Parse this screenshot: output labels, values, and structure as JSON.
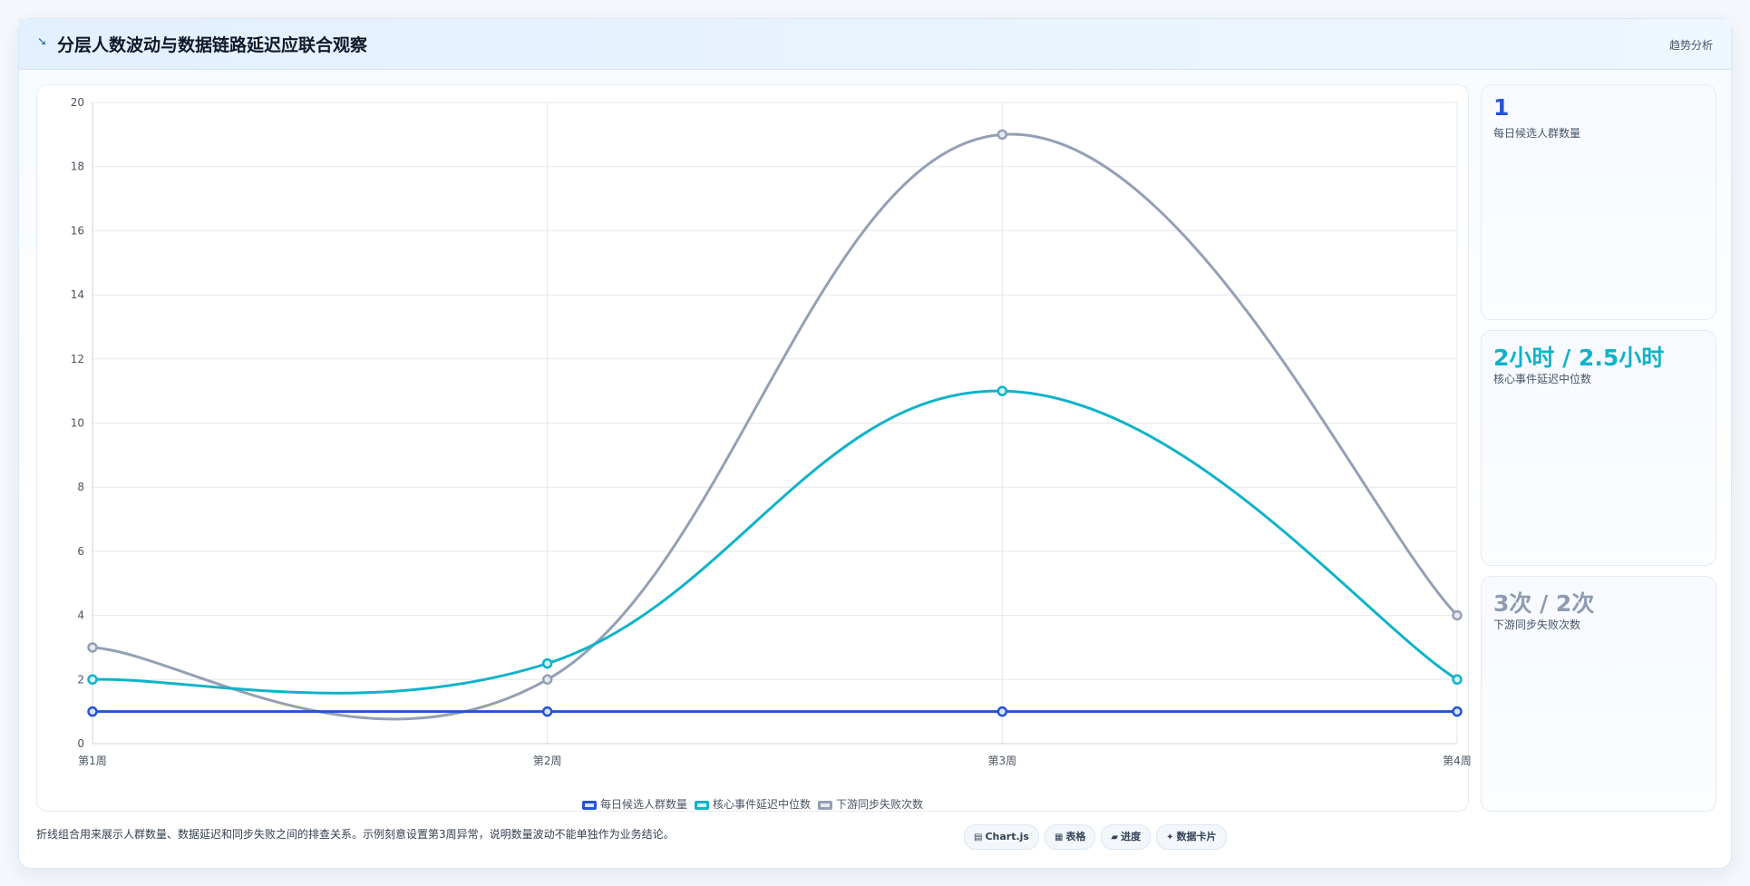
{
  "header": {
    "icon": "line-chart-icon",
    "title": "分层人数波动与数据链路延迟应联合观察",
    "tag": "趋势分析"
  },
  "stats": [
    {
      "value": "1",
      "label": "每日候选人群数量",
      "color": "#2453d6"
    },
    {
      "value": "2小时 / 2.5小时",
      "label": "核心事件延迟中位数",
      "color": "#0fb3c9"
    },
    {
      "value": "3次 / 2次",
      "label": "下游同步失败次数",
      "color": "#8f9bb0"
    }
  ],
  "footer": {
    "note": "折线组合用来展示人群数量、数据延迟和同步失败之间的排查关系。示例刻意设置第3周异常，说明数量波动不能单独作为业务结论。",
    "chips": [
      {
        "icon": "▤",
        "label": "Chart.js"
      },
      {
        "icon": "▦",
        "label": "表格"
      },
      {
        "icon": "▰",
        "label": "进度"
      },
      {
        "icon": "✦",
        "label": "数据卡片"
      }
    ]
  },
  "chart_data": {
    "type": "line",
    "categories": [
      "第1周",
      "第2周",
      "第3周",
      "第4周"
    ],
    "ylim": [
      0,
      20
    ],
    "y_ticks": [
      0,
      2,
      4,
      6,
      8,
      10,
      12,
      14,
      16,
      18,
      20
    ],
    "grid": true,
    "legend_position": "bottom",
    "series": [
      {
        "name": "每日候选人群数量",
        "values": [
          1,
          1,
          1,
          1
        ],
        "color": "#2453d6",
        "fill": "#dbe5fb"
      },
      {
        "name": "核心事件延迟中位数",
        "values": [
          2,
          2.5,
          11,
          2
        ],
        "color": "#0fb3c9",
        "fill": "#d3f3f7"
      },
      {
        "name": "下游同步失败次数",
        "values": [
          3,
          2,
          19,
          4
        ],
        "color": "#94a0b4",
        "fill": "#e6e9ef"
      }
    ]
  }
}
